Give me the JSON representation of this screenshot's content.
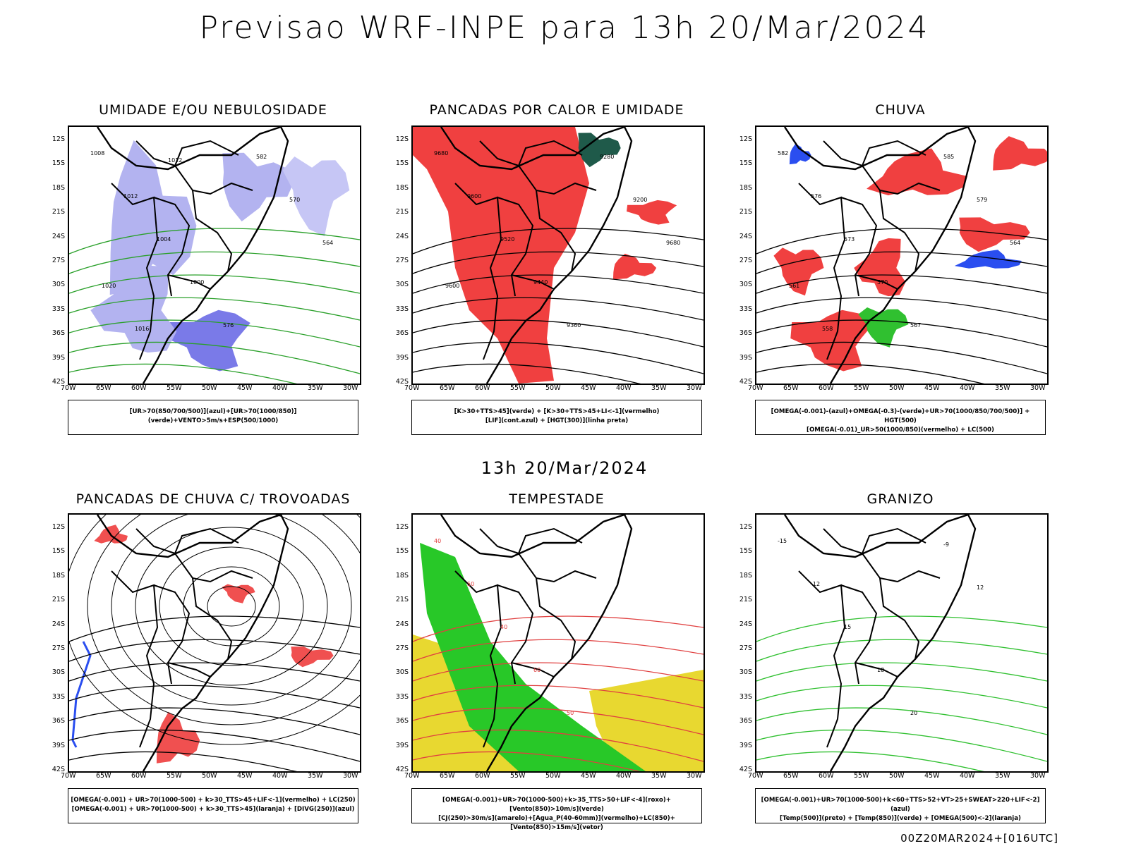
{
  "header": {
    "title": "Previsao WRF-INPE  para 13h 20/Mar/2024",
    "mid_date": "13h 20/Mar/2024",
    "footer": "00Z20MAR2024+[016UTC]"
  },
  "axes": {
    "lat_labels": [
      "12S",
      "15S",
      "18S",
      "21S",
      "24S",
      "27S",
      "30S",
      "33S",
      "36S",
      "39S",
      "42S"
    ],
    "lon_labels": [
      "70W",
      "65W",
      "60W",
      "55W",
      "50W",
      "45W",
      "40W",
      "35W",
      "30W"
    ]
  },
  "panels": [
    {
      "id": "umidade",
      "title": "UMIDADE E/OU NEBULOSIDADE",
      "legend": [
        "[UR>70(850/700/500)](azul)+[UR>70(1000/850)](verde)+VENTO>5m/s+ESP(500/1000)"
      ],
      "contour_labels": [
        "1008",
        "1012",
        "1004",
        "1000",
        "576",
        "582",
        "570",
        "564",
        "1020",
        "1016",
        "1012"
      ]
    },
    {
      "id": "pancadas-calor",
      "title": "PANCADAS POR CALOR E UMIDADE",
      "legend": [
        "[K>30+TTS>45](verde) + [K>30+TTS>45+LI<-1](vermelho)",
        "[LIF](cont.azul) + [HGT(300)](linha preta)"
      ],
      "contour_labels": [
        "9680",
        "9600",
        "9520",
        "9440",
        "9360",
        "9280",
        "9200",
        "9680",
        "9600"
      ]
    },
    {
      "id": "chuva",
      "title": "CHUVA",
      "legend": [
        "[OMEGA(-0.001)-(azul)+OMEGA(-0.3)-(verde)+UR>70(1000/850/700/500)] + HGT(500)",
        "[OMEGA(-0.01)_UR>50(1000/850)(vermelho) + LC(500)"
      ],
      "contour_labels": [
        "582",
        "576",
        "573",
        "570",
        "567",
        "585",
        "579",
        "564",
        "561",
        "558"
      ]
    },
    {
      "id": "trovoadas",
      "title": "PANCADAS DE CHUVA C/ TROVOADAS",
      "legend": [
        "[OMEGA(-0.001) + UR>70(1000-500) + k>30_TTS>45+LIF<-1](vermelho) + LC(250)",
        "[OMEGA(-0.001) + UR>70(1000-500) + k>30_TTS>45](laranja) + [DIVG(250)](azul)"
      ],
      "contour_labels": []
    },
    {
      "id": "tempestade",
      "title": "TEMPESTADE",
      "legend": [
        "[OMEGA(-0.001)+UR>70(1000-500)+k>35_TTS>50+LIF<-4](roxo)+[Vento(850)>10m/s](verde)",
        "[CJ(250)>30m/s](amarelo)+[Agua_P(40-60mm)](vermelho)+LC(850)+[Vento(850)>15m/s](vetor)"
      ],
      "contour_labels": [
        "40",
        "50",
        "40",
        "60",
        "50"
      ]
    },
    {
      "id": "granizo",
      "title": "GRANIZO",
      "legend": [
        "[OMEGA(-0.001)+UR>70(1000-500)+k<60+TTS>52+VT>25+SWEAT>220+LIF<-2](azul)",
        "[Temp(500)](preto) + [Temp(850)](verde) + [OMEGA(500)<-2](laranja)"
      ],
      "contour_labels": [
        "-15",
        "-12",
        "15",
        "18",
        "20",
        "-9",
        "12"
      ]
    }
  ]
}
